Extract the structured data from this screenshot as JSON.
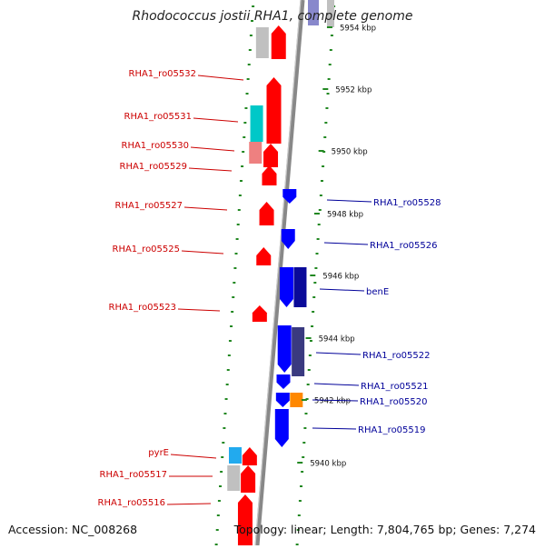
{
  "title": "Rhodococcus jostii RHA1, complete genome",
  "footer": {
    "accession": "Accession: NC_008268",
    "summary": "Topology: linear; Length: 7,804,765 bp; Genes: 7,274"
  },
  "colors": {
    "forward_gene": "#ff0000",
    "reverse_gene": "#0000ff",
    "forward_label": "#cc0000",
    "reverse_label": "#000099",
    "cyan_feature": "#00c8c8",
    "gray_feature": "#c0c0c0",
    "orange_feature": "#ff8800",
    "pink_feature": "#ee8080",
    "dark_slate_feature": "#3a3a80",
    "tick_green": "#228822",
    "axis": "#888888"
  },
  "scale_labels": [
    "5954 kbp",
    "5952 kbp",
    "5950 kbp",
    "5948 kbp",
    "5946 kbp",
    "5944 kbp",
    "5942 kbp",
    "5940 kbp"
  ],
  "forward_genes": [
    "RHA1_ro05532",
    "RHA1_ro05531",
    "RHA1_ro05530",
    "RHA1_ro05529",
    "RHA1_ro05527",
    "RHA1_ro05525",
    "RHA1_ro05523",
    "pyrE",
    "RHA1_ro05517",
    "RHA1_ro05516"
  ],
  "reverse_genes": [
    "RHA1_ro05528",
    "RHA1_ro05526",
    "benE",
    "RHA1_ro05522",
    "RHA1_ro05521",
    "RHA1_ro05520",
    "RHA1_ro05519"
  ]
}
